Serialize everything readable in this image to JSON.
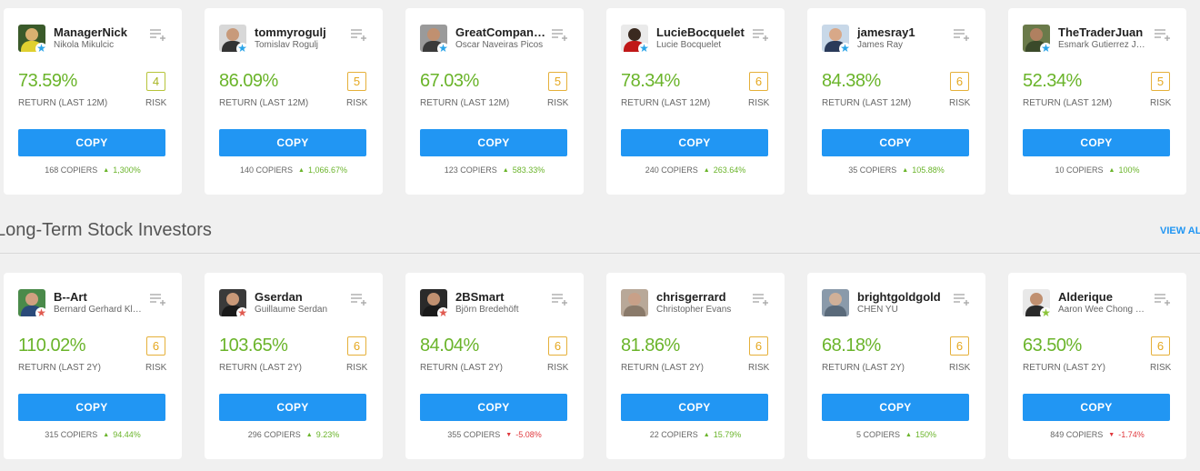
{
  "colors": {
    "accent": "#2196f3",
    "positive": "#6ab42a",
    "negative": "#e0393e",
    "risk": "#e5a820"
  },
  "section": {
    "title": "Long-Term Stock Investors",
    "view_all": "VIEW AL"
  },
  "row1": [
    {
      "username": "ManagerNick",
      "fullname": "Nikola Mikulcic",
      "return": "73.59%",
      "return_label": "RETURN (LAST 12M)",
      "risk": "4",
      "risk_label": "RISK",
      "copy": "COPY",
      "copiers": "168 COPIERS",
      "gain": "1,300%",
      "trend": "up",
      "star": "blue",
      "avatar": {
        "bg": "#3a5a2a",
        "head": "#d8b070",
        "body": "#e0d030"
      }
    },
    {
      "username": "tommyrogulj",
      "fullname": "Tomislav Rogulj",
      "return": "86.09%",
      "return_label": "RETURN (LAST 12M)",
      "risk": "5",
      "risk_label": "RISK",
      "copy": "COPY",
      "copiers": "140 COPIERS",
      "gain": "1,066.67%",
      "trend": "up",
      "star": "blue",
      "avatar": {
        "bg": "#d8d8d8",
        "head": "#c89a7a",
        "body": "#333333"
      }
    },
    {
      "username": "GreatCompanies",
      "fullname": "Oscar Naveiras Picos",
      "return": "67.03%",
      "return_label": "RETURN (LAST 12M)",
      "risk": "5",
      "risk_label": "RISK",
      "copy": "COPY",
      "copiers": "123 COPIERS",
      "gain": "583.33%",
      "trend": "up",
      "star": "blue",
      "avatar": {
        "bg": "#9a9a9a",
        "head": "#c09070",
        "body": "#3a3a3a"
      }
    },
    {
      "username": "LucieBocquelet",
      "fullname": "Lucie Bocquelet",
      "return": "78.34%",
      "return_label": "RETURN (LAST 12M)",
      "risk": "6",
      "risk_label": "RISK",
      "copy": "COPY",
      "copiers": "240 COPIERS",
      "gain": "263.64%",
      "trend": "up",
      "star": "blue",
      "avatar": {
        "bg": "#eaeaea",
        "head": "#3a2a20",
        "body": "#c01818"
      }
    },
    {
      "username": "jamesray1",
      "fullname": "James Ray",
      "return": "84.38%",
      "return_label": "RETURN (LAST 12M)",
      "risk": "6",
      "risk_label": "RISK",
      "copy": "COPY",
      "copiers": "35 COPIERS",
      "gain": "105.88%",
      "trend": "up",
      "star": "blue",
      "avatar": {
        "bg": "#c8d8e8",
        "head": "#d8a888",
        "body": "#2a3a5a"
      }
    },
    {
      "username": "TheTraderJuan",
      "fullname": "Esmark Gutierrez Juan",
      "return": "52.34%",
      "return_label": "RETURN (LAST 12M)",
      "risk": "5",
      "risk_label": "RISK",
      "copy": "COPY",
      "copiers": "10 COPIERS",
      "gain": "100%",
      "trend": "up",
      "star": "blue",
      "avatar": {
        "bg": "#6a7a4a",
        "head": "#b08060",
        "body": "#3a4a2a"
      }
    }
  ],
  "row2": [
    {
      "username": "B--Art",
      "fullname": "Bernard Gerhard Klaus",
      "return": "110.02%",
      "return_label": "RETURN (LAST 2Y)",
      "risk": "6",
      "risk_label": "RISK",
      "copy": "COPY",
      "copiers": "315 COPIERS",
      "gain": "94.44%",
      "trend": "up",
      "star": "red",
      "avatar": {
        "bg": "#4a8a4a",
        "head": "#d0a080",
        "body": "#2a4a7a"
      }
    },
    {
      "username": "Gserdan",
      "fullname": "Guillaume Serdan",
      "return": "103.65%",
      "return_label": "RETURN (LAST 2Y)",
      "risk": "6",
      "risk_label": "RISK",
      "copy": "COPY",
      "copiers": "296 COPIERS",
      "gain": "9.23%",
      "trend": "up",
      "star": "red",
      "avatar": {
        "bg": "#3a3a3a",
        "head": "#c89878",
        "body": "#1a1a1a"
      }
    },
    {
      "username": "2BSmart",
      "fullname": "Björn Bredehöft",
      "return": "84.04%",
      "return_label": "RETURN (LAST 2Y)",
      "risk": "6",
      "risk_label": "RISK",
      "copy": "COPY",
      "copiers": "355 COPIERS",
      "gain": "-5.08%",
      "trend": "down",
      "star": "red",
      "avatar": {
        "bg": "#2a2a2a",
        "head": "#c09070",
        "body": "#1a1a1a"
      }
    },
    {
      "username": "chrisgerrard",
      "fullname": "Christopher Evans",
      "return": "81.86%",
      "return_label": "RETURN (LAST 2Y)",
      "risk": "6",
      "risk_label": "RISK",
      "copy": "COPY",
      "copiers": "22 COPIERS",
      "gain": "15.79%",
      "trend": "up",
      "star": "none",
      "avatar": {
        "bg": "#b8a898",
        "head": "#c8a088",
        "body": "#8a7a6a"
      }
    },
    {
      "username": "brightgoldgold",
      "fullname": "CHEN YU",
      "return": "68.18%",
      "return_label": "RETURN (LAST 2Y)",
      "risk": "6",
      "risk_label": "RISK",
      "copy": "COPY",
      "copiers": "5 COPIERS",
      "gain": "150%",
      "trend": "up",
      "star": "none",
      "avatar": {
        "bg": "#8a9aaa",
        "head": "#d0b098",
        "body": "#5a6a7a"
      }
    },
    {
      "username": "Alderique",
      "fullname": "Aaron Wee Chong Wah",
      "return": "63.50%",
      "return_label": "RETURN (LAST 2Y)",
      "risk": "6",
      "risk_label": "RISK",
      "copy": "COPY",
      "copiers": "849 COPIERS",
      "gain": "-1.74%",
      "trend": "down",
      "star": "green",
      "avatar": {
        "bg": "#e8e8e8",
        "head": "#c09070",
        "body": "#2a2a2a"
      }
    }
  ]
}
